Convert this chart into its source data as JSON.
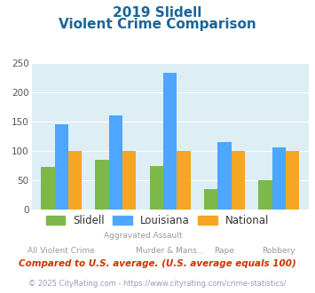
{
  "title_line1": "2019 Slidell",
  "title_line2": "Violent Crime Comparison",
  "cat_labels_top": [
    "",
    "Aggravated Assault",
    "",
    ""
  ],
  "cat_labels_bot": [
    "All Violent Crime",
    "Murder & Mans...",
    "Rape",
    "Robbery"
  ],
  "series": {
    "Slidell": [
      72,
      85,
      74,
      35,
      50
    ],
    "Louisiana": [
      146,
      161,
      234,
      115,
      106
    ],
    "National": [
      100,
      100,
      100,
      100,
      100
    ]
  },
  "x_positions": [
    0,
    1,
    2,
    3,
    4
  ],
  "group_labels": {
    "top": {
      "text": "Aggravated Assault",
      "x": 1.5
    },
    "bot": [
      {
        "text": "All Violent Crime",
        "x": 0
      },
      {
        "text": "Murder & Mans...",
        "x": 2
      },
      {
        "text": "Rape",
        "x": 3
      },
      {
        "text": "Robbery",
        "x": 4
      }
    ]
  },
  "colors": {
    "Slidell": "#7db84a",
    "Louisiana": "#4da6ff",
    "National": "#f5a623"
  },
  "ylim": [
    0,
    250
  ],
  "yticks": [
    0,
    50,
    100,
    150,
    200,
    250
  ],
  "fig_bg": "#ffffff",
  "plot_bg": "#ddeef5",
  "title_color": "#1a6699",
  "axis_label_color": "#999999",
  "footnote1": "Compared to U.S. average. (U.S. average equals 100)",
  "footnote2": "© 2025 CityRating.com - https://www.cityrating.com/crime-statistics/",
  "footnote1_color": "#cc3300",
  "footnote2_color": "#9999bb"
}
